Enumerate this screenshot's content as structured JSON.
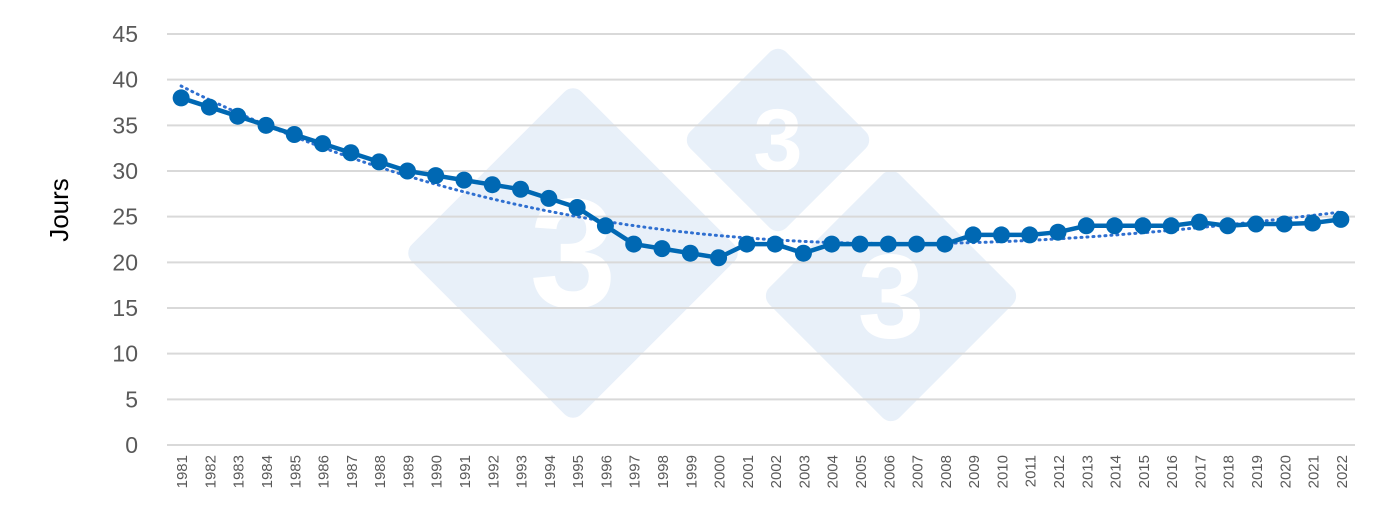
{
  "chart_data": {
    "type": "line",
    "title": "",
    "xlabel": "",
    "ylabel": "Jours",
    "ylim": [
      0,
      45
    ],
    "yticks": [
      0,
      5,
      10,
      15,
      20,
      25,
      30,
      35,
      40,
      45
    ],
    "grid": "horizontal",
    "legend": "none",
    "trendline": "polynomial (dotted)",
    "x": [
      "1981",
      "1982",
      "1983",
      "1984",
      "1985",
      "1986",
      "1987",
      "1988",
      "1989",
      "1990",
      "1991",
      "1992",
      "1993",
      "1994",
      "1995",
      "1996",
      "1997",
      "1998",
      "1999",
      "2000",
      "2001",
      "2002",
      "2003",
      "2004",
      "2005",
      "2006",
      "2007",
      "2008",
      "2009",
      "2010",
      "2011",
      "2012",
      "2013",
      "2014",
      "2015",
      "2016",
      "2017",
      "2018",
      "2019",
      "2020",
      "2021",
      "2022"
    ],
    "series": [
      {
        "values": [
          38,
          37,
          36,
          35,
          34,
          33,
          32,
          31,
          30,
          29.5,
          29,
          28.5,
          28,
          27,
          26,
          24,
          22,
          21.5,
          21,
          20.5,
          22,
          22,
          21,
          22,
          22,
          22,
          22,
          22,
          23,
          23,
          23,
          23.3,
          24,
          24,
          24,
          24,
          24.4,
          24,
          24.2,
          24.2,
          24.3,
          24.7
        ]
      }
    ],
    "colors": {
      "line": "#0068B3",
      "trend": "#2F6FD0",
      "grid": "#D9D9D9",
      "watermark": "#E8F0F9"
    }
  },
  "watermark": {
    "logo_text": "333"
  }
}
